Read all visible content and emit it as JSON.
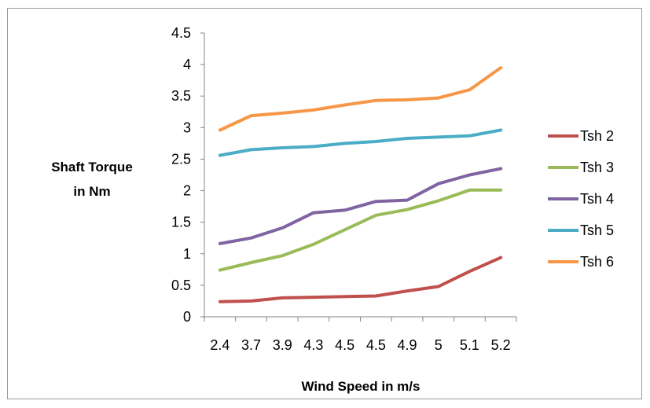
{
  "chart_data": {
    "type": "line",
    "categories": [
      "2.4",
      "3.7",
      "3.9",
      "4.3",
      "4.5",
      "4.5",
      "4.9",
      "5",
      "5.1",
      "5.2"
    ],
    "series": [
      {
        "name": "Tsh 2",
        "color": "#C0504D",
        "values": [
          0.24,
          0.25,
          0.3,
          0.31,
          0.32,
          0.33,
          0.41,
          0.48,
          0.72,
          0.94
        ]
      },
      {
        "name": "Tsh 3",
        "color": "#9BBB59",
        "values": [
          0.74,
          0.86,
          0.97,
          1.15,
          1.38,
          1.61,
          1.7,
          1.84,
          2.01,
          2.01
        ]
      },
      {
        "name": "Tsh 4",
        "color": "#8064A2",
        "values": [
          1.16,
          1.25,
          1.41,
          1.65,
          1.69,
          1.83,
          1.85,
          2.11,
          2.25,
          2.35
        ]
      },
      {
        "name": "Tsh 5",
        "color": "#4BACC6",
        "values": [
          2.56,
          2.65,
          2.68,
          2.7,
          2.75,
          2.78,
          2.83,
          2.85,
          2.87,
          2.96
        ]
      },
      {
        "name": "Tsh 6",
        "color": "#F79646",
        "values": [
          2.96,
          3.19,
          3.23,
          3.28,
          3.36,
          3.43,
          3.44,
          3.47,
          3.6,
          3.95
        ]
      }
    ],
    "yticks": [
      "0",
      "0.5",
      "1",
      "1.5",
      "2",
      "2.5",
      "3",
      "3.5",
      "4",
      "4.5"
    ],
    "ylim": [
      0,
      4.5
    ],
    "xlabel": "Wind Speed in m/s",
    "ylabel_lines": [
      "Shaft Torque",
      "in Nm"
    ],
    "legend_position": "right",
    "grid": false
  }
}
